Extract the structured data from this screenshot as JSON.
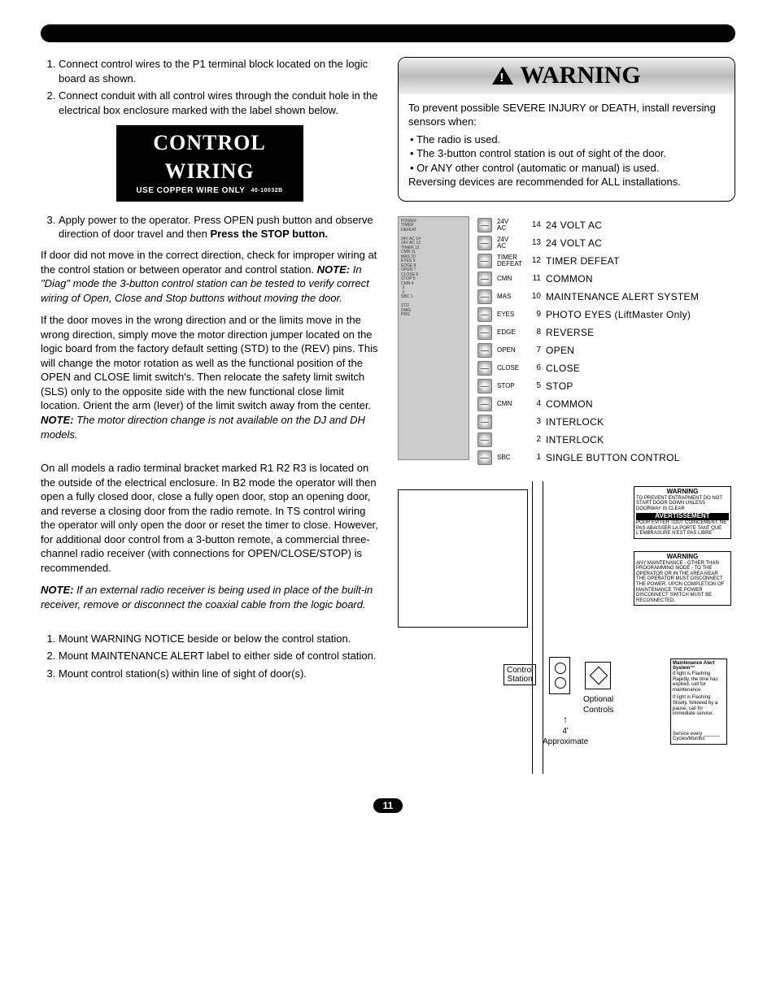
{
  "badge": {
    "title": "CONTROL WIRING",
    "subtitle": "USE COPPER WIRE ONLY",
    "code": "40-10032B"
  },
  "left": {
    "list1": {
      "item1": "Connect control wires to the P1 terminal block located on the logic board as shown.",
      "item2": "Connect conduit with all control wires through the conduit hole in the electrical box enclosure marked with the label shown below."
    },
    "list2_lead": "Apply power to the operator. Press OPEN push button and observe direction of door travel and then ",
    "list2_bold": "Press the STOP button.",
    "para1a": "If door did not move in the correct direction, check for improper wiring at the control station or between operator and control station. ",
    "note1_lead": "NOTE:",
    "note1_body": " In \"Diag\" mode the 3-button control station can be tested to verify correct wiring of Open, Close and Stop buttons without moving the door.",
    "para2a": "If the door moves in the wrong direction and or the limits move in the wrong direction, simply move the motor direction jumper located on the logic board from the factory default setting (STD) to the (REV) pins. This will change the motor rotation as well as the functional position of the OPEN and CLOSE limit switch's. Then relocate the safety limit switch (SLS) only to the opposite side with the new functional close limit location. Orient the arm (lever) of the limit switch away from the center. ",
    "note2_lead": "NOTE:",
    "note2_body": " The motor direction change is not available on the DJ and DH models.",
    "para3": "On all models a radio terminal bracket marked R1 R2 R3 is located on the outside of the electrical enclosure. In B2 mode the operator will then open a fully closed door, close a fully open door, stop an opening door, and reverse a closing door from the radio remote. In TS control wiring the operator will only open the door or reset the timer to close. However, for additional door control from a 3-button remote, a commercial three-channel radio receiver (with connections for OPEN/CLOSE/STOP) is recommended.",
    "note3_lead": "NOTE:",
    "note3_body": " If an external radio receiver is being used in place of the built-in receiver, remove or disconnect the coaxial cable from the logic board.",
    "list3": {
      "item1": "Mount WARNING NOTICE beside or below the control station.",
      "item2": "Mount MAINTENANCE ALERT label to either side of control station.",
      "item3": "Mount control station(s) within line of sight of door(s)."
    }
  },
  "warning": {
    "title": "WARNING",
    "intro": "To prevent possible SEVERE INJURY or DEATH, install reversing sensors when:",
    "b1": "The radio is used.",
    "b2": "The 3-button control station is out of sight of the door.",
    "b3": "Or ANY other control (automatic or manual) is used.",
    "outro": "Reversing devices are recommended for ALL installations."
  },
  "terminals": [
    {
      "split": "24V\nAC",
      "num": "14",
      "label": "24 VOLT AC"
    },
    {
      "split": "24V\nAC",
      "num": "13",
      "label": "24 VOLT AC"
    },
    {
      "split": "TIMER\nDEFEAT",
      "num": "12",
      "label": "TIMER DEFEAT"
    },
    {
      "split": "CMN",
      "num": "11",
      "label": "COMMON"
    },
    {
      "split": "MAS",
      "num": "10",
      "label": "MAINTENANCE ALERT SYSTEM"
    },
    {
      "split": "EYES",
      "num": "9",
      "label": "PHOTO EYES (LiftMaster Only)"
    },
    {
      "split": "EDGE",
      "num": "8",
      "label": "REVERSE"
    },
    {
      "split": "OPEN",
      "num": "7",
      "label": "OPEN"
    },
    {
      "split": "CLOSE",
      "num": "6",
      "label": "CLOSE"
    },
    {
      "split": "STOP",
      "num": "5",
      "label": "STOP"
    },
    {
      "split": "CMN",
      "num": "4",
      "label": "COMMON"
    },
    {
      "split": "",
      "num": "3",
      "label": "INTERLOCK"
    },
    {
      "split": "",
      "num": "2",
      "label": "INTERLOCK"
    },
    {
      "split": "SBC",
      "num": "1",
      "label": "SINGLE BUTTON CONTROL"
    }
  ],
  "install": {
    "control_station": "Control\nStation",
    "optional": "Optional\nControls",
    "approx": "4'\nApproximate",
    "w1_hd": "WARNING",
    "w1_body": "TO PREVENT ENTRAPMENT DO NOT START DOOR DOWN UNLESS DOORWAY IS CLEAR",
    "av_hd": "AVERTISSEMENT",
    "av_body": "POUR ÉVITER TOUT COINCEMENT, NE PAS ABAISSER LA PORTE TANT QUE L'EMBRASURE N'EST PAS LIBRE",
    "w2_hd": "WARNING",
    "w2_body": "ANY MAINTENANCE - OTHER THAN PROGRAMMING MODE - TO THE OPERATOR OR IN THE AREA NEAR THE OPERATOR MUST DISCONNECT THE POWER. UPON COMPLETION OF MAINTENANCE THE POWER DISCONNECT SWITCH MUST BE RECONNECTED.",
    "mas_hd": "Maintenance Alert System™",
    "mas_b1": "If light is Flashing Rapidly, the time has expired, call for maintenance.",
    "mas_b2": "If light is Flashing Slowly, followed by a pause, call for immediate service.",
    "mas_foot": "Service every ______ Cycles/Months"
  },
  "page_number": "11"
}
